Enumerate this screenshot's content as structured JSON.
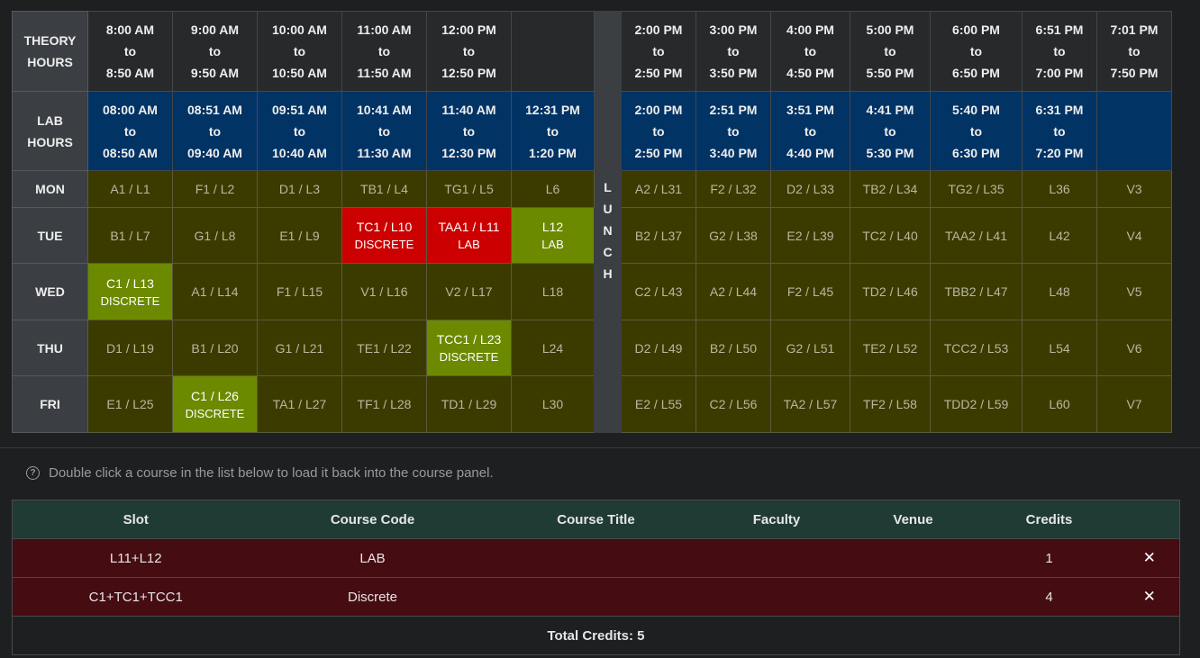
{
  "header": {
    "theory_label": [
      "THEORY",
      "HOURS"
    ],
    "lab_label": [
      "LAB",
      "HOURS"
    ],
    "theory_am": [
      [
        "8:00 AM",
        "to",
        "8:50 AM"
      ],
      [
        "9:00 AM",
        "to",
        "9:50 AM"
      ],
      [
        "10:00 AM",
        "to",
        "10:50 AM"
      ],
      [
        "11:00 AM",
        "to",
        "11:50 AM"
      ],
      [
        "12:00 PM",
        "to",
        "12:50 PM"
      ]
    ],
    "theory_pm": [
      [
        "2:00 PM",
        "to",
        "2:50 PM"
      ],
      [
        "3:00 PM",
        "to",
        "3:50 PM"
      ],
      [
        "4:00 PM",
        "to",
        "4:50 PM"
      ],
      [
        "5:00 PM",
        "to",
        "5:50 PM"
      ],
      [
        "6:00 PM",
        "to",
        "6:50 PM"
      ],
      [
        "6:51 PM",
        "to",
        "7:00 PM"
      ],
      [
        "7:01 PM",
        "to",
        "7:50 PM"
      ]
    ],
    "lab_am": [
      [
        "08:00 AM",
        "to",
        "08:50 AM"
      ],
      [
        "08:51 AM",
        "to",
        "09:40 AM"
      ],
      [
        "09:51 AM",
        "to",
        "10:40 AM"
      ],
      [
        "10:41 AM",
        "to",
        "11:30 AM"
      ],
      [
        "11:40 AM",
        "to",
        "12:30 PM"
      ],
      [
        "12:31 PM",
        "to",
        "1:20 PM"
      ]
    ],
    "lab_pm": [
      [
        "2:00 PM",
        "to",
        "2:50 PM"
      ],
      [
        "2:51 PM",
        "to",
        "3:40 PM"
      ],
      [
        "3:51 PM",
        "to",
        "4:40 PM"
      ],
      [
        "4:41 PM",
        "to",
        "5:30 PM"
      ],
      [
        "5:40 PM",
        "to",
        "6:30 PM"
      ],
      [
        "6:31 PM",
        "to",
        "7:20 PM"
      ]
    ],
    "lunch_letters": [
      "L",
      "U",
      "N",
      "C",
      "H"
    ]
  },
  "days": [
    {
      "name": "MON",
      "am": [
        {
          "t": "A1 / L1"
        },
        {
          "t": "F1 / L2"
        },
        {
          "t": "D1 / L3"
        },
        {
          "t": "TB1 / L4"
        },
        {
          "t": "TG1 / L5"
        },
        {
          "t": "L6"
        }
      ],
      "pm": [
        {
          "t": "A2 / L31"
        },
        {
          "t": "F2 / L32"
        },
        {
          "t": "D2 / L33"
        },
        {
          "t": "TB2 / L34"
        },
        {
          "t": "TG2 / L35"
        },
        {
          "t": "L36"
        },
        {
          "t": "V3"
        }
      ]
    },
    {
      "name": "TUE",
      "am": [
        {
          "t": "B1 / L7"
        },
        {
          "t": "G1 / L8"
        },
        {
          "t": "E1 / L9"
        },
        {
          "t": "TC1 / L10",
          "sub": "DISCRETE",
          "hl": "red"
        },
        {
          "t": "TAA1 / L11",
          "sub": "LAB",
          "hl": "red"
        },
        {
          "t": "L12",
          "sub": "LAB",
          "hl": "green"
        }
      ],
      "pm": [
        {
          "t": "B2 / L37"
        },
        {
          "t": "G2 / L38"
        },
        {
          "t": "E2 / L39"
        },
        {
          "t": "TC2 / L40"
        },
        {
          "t": "TAA2 / L41"
        },
        {
          "t": "L42"
        },
        {
          "t": "V4"
        }
      ]
    },
    {
      "name": "WED",
      "am": [
        {
          "t": "C1 / L13",
          "sub": "DISCRETE",
          "hl": "green"
        },
        {
          "t": "A1 / L14"
        },
        {
          "t": "F1 / L15"
        },
        {
          "t": "V1 / L16"
        },
        {
          "t": "V2 / L17"
        },
        {
          "t": "L18"
        }
      ],
      "pm": [
        {
          "t": "C2 / L43"
        },
        {
          "t": "A2 / L44"
        },
        {
          "t": "F2 / L45"
        },
        {
          "t": "TD2 / L46"
        },
        {
          "t": "TBB2 / L47"
        },
        {
          "t": "L48"
        },
        {
          "t": "V5"
        }
      ]
    },
    {
      "name": "THU",
      "am": [
        {
          "t": "D1 / L19"
        },
        {
          "t": "B1 / L20"
        },
        {
          "t": "G1 / L21"
        },
        {
          "t": "TE1 / L22"
        },
        {
          "t": "TCC1 / L23",
          "sub": "DISCRETE",
          "hl": "green"
        },
        {
          "t": "L24"
        }
      ],
      "pm": [
        {
          "t": "D2 / L49"
        },
        {
          "t": "B2 / L50"
        },
        {
          "t": "G2 / L51"
        },
        {
          "t": "TE2 / L52"
        },
        {
          "t": "TCC2 / L53"
        },
        {
          "t": "L54"
        },
        {
          "t": "V6"
        }
      ]
    },
    {
      "name": "FRI",
      "am": [
        {
          "t": "E1 / L25"
        },
        {
          "t": "C1 / L26",
          "sub": "DISCRETE",
          "hl": "green"
        },
        {
          "t": "TA1 / L27"
        },
        {
          "t": "TF1 / L28"
        },
        {
          "t": "TD1 / L29"
        },
        {
          "t": "L30"
        }
      ],
      "pm": [
        {
          "t": "E2 / L55"
        },
        {
          "t": "C2 / L56"
        },
        {
          "t": "TA2 / L57"
        },
        {
          "t": "TF2 / L58"
        },
        {
          "t": "TDD2 / L59"
        },
        {
          "t": "L60"
        },
        {
          "t": "V7"
        }
      ]
    }
  ],
  "hint": {
    "icon": "help-circle-icon",
    "text": "Double click a course in the list below to load it back into the course panel."
  },
  "courses": {
    "headers": [
      "Slot",
      "Course Code",
      "Course Title",
      "Faculty",
      "Venue",
      "Credits",
      ""
    ],
    "rows": [
      {
        "slot": "L11+L12",
        "code": "LAB",
        "title": "",
        "faculty": "",
        "venue": "",
        "credits": "1"
      },
      {
        "slot": "C1+TC1+TCC1",
        "code": "Discrete",
        "title": "",
        "faculty": "",
        "venue": "",
        "credits": "4"
      }
    ],
    "remove_glyph": "✕",
    "total": "Total Credits: 5"
  },
  "colors": {
    "slot": "#3b3b00",
    "clash": "#cc0000",
    "selected": "#6b8a00",
    "lab_header": "#013365",
    "course_row": "#450c12"
  }
}
